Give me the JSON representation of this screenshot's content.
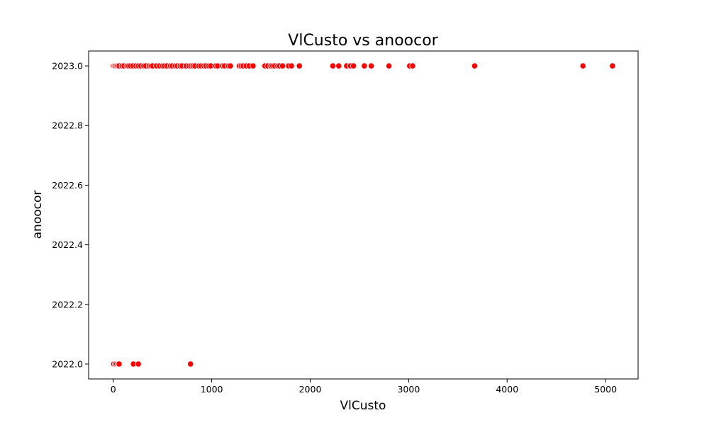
{
  "chart_data": {
    "type": "scatter",
    "title": "VlCusto vs anoocor",
    "xlabel": "VlCusto",
    "ylabel": "anoocor",
    "xlim": [
      -250,
      5330
    ],
    "ylim": [
      2021.95,
      2023.05
    ],
    "xticks": [
      0,
      1000,
      2000,
      3000,
      4000,
      5000
    ],
    "yticks": [
      2022.0,
      2022.2,
      2022.4,
      2022.6,
      2022.8,
      2023.0
    ],
    "ytick_labels": [
      "2022.0",
      "2022.2",
      "2022.4",
      "2022.6",
      "2022.8",
      "2023.0"
    ],
    "grid": false,
    "marker_color": "#ff0000",
    "marker_edge": "#ffffff",
    "points": [
      {
        "x": 0,
        "y": 2023
      },
      {
        "x": 10,
        "y": 2023
      },
      {
        "x": 20,
        "y": 2023
      },
      {
        "x": 35,
        "y": 2023
      },
      {
        "x": 45,
        "y": 2023
      },
      {
        "x": 60,
        "y": 2023
      },
      {
        "x": 90,
        "y": 2023
      },
      {
        "x": 110,
        "y": 2023
      },
      {
        "x": 140,
        "y": 2023
      },
      {
        "x": 155,
        "y": 2023
      },
      {
        "x": 175,
        "y": 2023
      },
      {
        "x": 200,
        "y": 2023
      },
      {
        "x": 230,
        "y": 2023
      },
      {
        "x": 255,
        "y": 2023
      },
      {
        "x": 280,
        "y": 2023
      },
      {
        "x": 310,
        "y": 2023
      },
      {
        "x": 330,
        "y": 2023
      },
      {
        "x": 365,
        "y": 2023
      },
      {
        "x": 385,
        "y": 2023
      },
      {
        "x": 400,
        "y": 2023
      },
      {
        "x": 440,
        "y": 2023
      },
      {
        "x": 470,
        "y": 2023
      },
      {
        "x": 500,
        "y": 2023
      },
      {
        "x": 520,
        "y": 2023
      },
      {
        "x": 545,
        "y": 2023
      },
      {
        "x": 580,
        "y": 2023
      },
      {
        "x": 600,
        "y": 2023
      },
      {
        "x": 630,
        "y": 2023
      },
      {
        "x": 650,
        "y": 2023
      },
      {
        "x": 680,
        "y": 2023
      },
      {
        "x": 700,
        "y": 2023
      },
      {
        "x": 740,
        "y": 2023
      },
      {
        "x": 770,
        "y": 2023
      },
      {
        "x": 790,
        "y": 2023
      },
      {
        "x": 810,
        "y": 2023
      },
      {
        "x": 830,
        "y": 2023
      },
      {
        "x": 870,
        "y": 2023
      },
      {
        "x": 890,
        "y": 2023
      },
      {
        "x": 920,
        "y": 2023
      },
      {
        "x": 940,
        "y": 2023
      },
      {
        "x": 970,
        "y": 2023
      },
      {
        "x": 990,
        "y": 2023
      },
      {
        "x": 1040,
        "y": 2023
      },
      {
        "x": 1060,
        "y": 2023
      },
      {
        "x": 1110,
        "y": 2023
      },
      {
        "x": 1130,
        "y": 2023
      },
      {
        "x": 1170,
        "y": 2023
      },
      {
        "x": 1190,
        "y": 2023
      },
      {
        "x": 1280,
        "y": 2023
      },
      {
        "x": 1300,
        "y": 2023
      },
      {
        "x": 1320,
        "y": 2023
      },
      {
        "x": 1350,
        "y": 2023
      },
      {
        "x": 1380,
        "y": 2023
      },
      {
        "x": 1420,
        "y": 2023
      },
      {
        "x": 1540,
        "y": 2023
      },
      {
        "x": 1570,
        "y": 2023
      },
      {
        "x": 1600,
        "y": 2023
      },
      {
        "x": 1620,
        "y": 2023
      },
      {
        "x": 1640,
        "y": 2023
      },
      {
        "x": 1670,
        "y": 2023
      },
      {
        "x": 1690,
        "y": 2023
      },
      {
        "x": 1720,
        "y": 2023
      },
      {
        "x": 1780,
        "y": 2023
      },
      {
        "x": 1810,
        "y": 2023
      },
      {
        "x": 1890,
        "y": 2023
      },
      {
        "x": 2230,
        "y": 2023
      },
      {
        "x": 2290,
        "y": 2023
      },
      {
        "x": 2370,
        "y": 2023
      },
      {
        "x": 2410,
        "y": 2023
      },
      {
        "x": 2440,
        "y": 2023
      },
      {
        "x": 2550,
        "y": 2023
      },
      {
        "x": 2620,
        "y": 2023
      },
      {
        "x": 2800,
        "y": 2023
      },
      {
        "x": 3010,
        "y": 2023
      },
      {
        "x": 3040,
        "y": 2023
      },
      {
        "x": 3670,
        "y": 2023
      },
      {
        "x": 4770,
        "y": 2023
      },
      {
        "x": 5070,
        "y": 2023
      },
      {
        "x": 5,
        "y": 2022
      },
      {
        "x": 20,
        "y": 2022
      },
      {
        "x": 35,
        "y": 2022
      },
      {
        "x": 50,
        "y": 2022
      },
      {
        "x": 60,
        "y": 2022
      },
      {
        "x": 205,
        "y": 2022
      },
      {
        "x": 255,
        "y": 2022
      },
      {
        "x": 785,
        "y": 2022
      }
    ]
  }
}
